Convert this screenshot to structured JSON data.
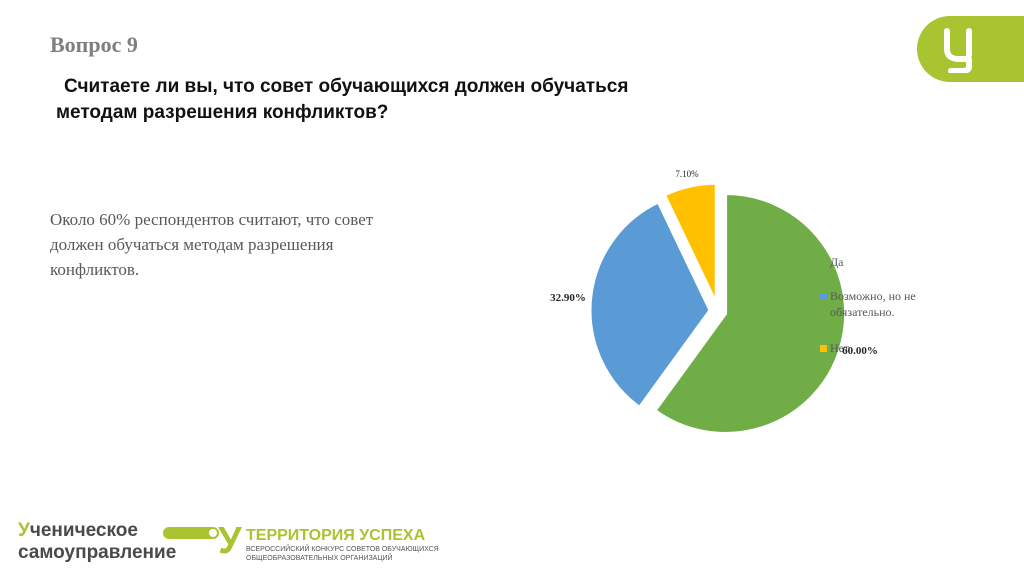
{
  "slide": {
    "question_number": "Вопрос 9",
    "question_line1": "Считаете ли вы, что совет обучающихся должен обучаться",
    "question_line2": "методам разрешения конфликтов?",
    "summary": "Около 60% респондентов считают, что совет должен обучаться методам разрешения конфликтов.",
    "brand_color": "#a8c431"
  },
  "footer": {
    "logo1_line1_first": "У",
    "logo1_line1_rest": "ченическое",
    "logo1_line2": "самоуправление",
    "logo2_glyph": "У",
    "logo2_title": "ТЕРРИТОРИЯ УСПЕХА",
    "logo2_sub1": "ВСЕРОССИЙСКИЙ КОНКУРС СОВЕТОВ ОБУЧАЮЩИХСЯ",
    "logo2_sub2": "ОБЩЕОБРАЗОВАТЕЛЬНЫХ ОРГАНИЗАЦИЙ"
  },
  "chart_data": {
    "type": "pie",
    "slices": [
      {
        "label": "Да",
        "value": 60.0,
        "display": "60.00%",
        "color": "#70ad47"
      },
      {
        "label": "Возможно, но не обязательно.",
        "value": 32.9,
        "display": "32.90%",
        "color": "#5b9bd5"
      },
      {
        "label": "Нет",
        "value": 7.1,
        "display": "7.10%",
        "color": "#ffc000"
      }
    ],
    "legend_placement": "right",
    "legend": [
      "Да",
      "Возможно, но не обязательно.",
      "Нет"
    ],
    "legend_lines": [
      [
        "Да"
      ],
      [
        "Возможно, но не",
        "обязательно."
      ],
      [
        "Нет"
      ]
    ],
    "exploded": true
  }
}
